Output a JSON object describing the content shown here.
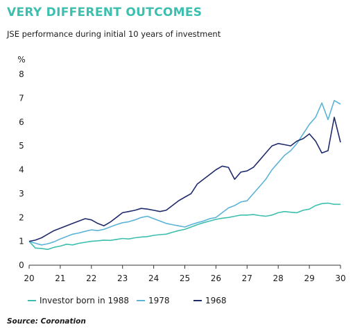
{
  "title": "VERY DIFFERENT OUTCOMES",
  "subtitle": "JSE performance during initial 10 years of investment",
  "source": "Source: Coronation",
  "colors": {
    "title": "#3cbfae",
    "born1988": "#3cbfae",
    "born1978": "#5bb3d8",
    "born1968": "#1f2a6b",
    "axis": "#333333"
  },
  "chart_data": {
    "type": "line",
    "ylabel": "%",
    "xlim": [
      20,
      30
    ],
    "ylim": [
      0,
      8
    ],
    "xticks": [
      "20",
      "21",
      "22",
      "23",
      "24",
      "25",
      "26",
      "27",
      "28",
      "29",
      "30"
    ],
    "yticks": [
      "0",
      "1",
      "2",
      "3",
      "4",
      "5",
      "6",
      "7",
      "8"
    ],
    "grid": false,
    "legend": "bottom",
    "series": [
      {
        "name": "Investor born in 1988",
        "color": "#3cbfae",
        "x": [
          20.0,
          20.2,
          20.4,
          20.6,
          20.8,
          21.0,
          21.2,
          21.4,
          21.6,
          21.8,
          22.0,
          22.2,
          22.4,
          22.6,
          22.8,
          23.0,
          23.2,
          23.4,
          23.6,
          23.8,
          24.0,
          24.2,
          24.4,
          24.6,
          24.8,
          25.0,
          25.2,
          25.4,
          25.6,
          25.8,
          26.0,
          26.2,
          26.4,
          26.6,
          26.8,
          27.0,
          27.2,
          27.4,
          27.6,
          27.8,
          28.0,
          28.2,
          28.4,
          28.6,
          28.8,
          29.0,
          29.2,
          29.4,
          29.6,
          29.8,
          30.0
        ],
        "y": [
          1.0,
          0.72,
          0.7,
          0.66,
          0.75,
          0.8,
          0.88,
          0.85,
          0.92,
          0.96,
          1.0,
          1.02,
          1.05,
          1.04,
          1.08,
          1.12,
          1.1,
          1.15,
          1.18,
          1.2,
          1.25,
          1.28,
          1.3,
          1.38,
          1.45,
          1.5,
          1.6,
          1.7,
          1.78,
          1.85,
          1.92,
          1.97,
          2.0,
          2.05,
          2.1,
          2.1,
          2.12,
          2.08,
          2.05,
          2.1,
          2.2,
          2.25,
          2.22,
          2.2,
          2.3,
          2.35,
          2.5,
          2.58,
          2.6,
          2.55,
          2.55
        ]
      },
      {
        "name": "1978",
        "color": "#5bb3d8",
        "x": [
          20.0,
          20.2,
          20.4,
          20.6,
          20.8,
          21.0,
          21.2,
          21.4,
          21.6,
          21.8,
          22.0,
          22.2,
          22.4,
          22.6,
          22.8,
          23.0,
          23.2,
          23.4,
          23.6,
          23.8,
          24.0,
          24.2,
          24.4,
          24.6,
          24.8,
          25.0,
          25.2,
          25.4,
          25.6,
          25.8,
          26.0,
          26.2,
          26.4,
          26.6,
          26.8,
          27.0,
          27.2,
          27.4,
          27.6,
          27.8,
          28.0,
          28.2,
          28.4,
          28.6,
          28.8,
          29.0,
          29.2,
          29.4,
          29.6,
          29.8,
          30.0
        ],
        "y": [
          1.0,
          0.92,
          0.85,
          0.9,
          0.98,
          1.1,
          1.2,
          1.3,
          1.35,
          1.42,
          1.48,
          1.45,
          1.5,
          1.6,
          1.7,
          1.78,
          1.82,
          1.9,
          2.0,
          2.05,
          1.95,
          1.85,
          1.75,
          1.7,
          1.65,
          1.6,
          1.7,
          1.78,
          1.85,
          1.95,
          2.0,
          2.2,
          2.4,
          2.5,
          2.65,
          2.7,
          3.0,
          3.3,
          3.6,
          4.0,
          4.3,
          4.6,
          4.8,
          5.1,
          5.5,
          5.9,
          6.2,
          6.8,
          6.1,
          6.9,
          6.75
        ]
      },
      {
        "name": "1968",
        "color": "#1f2a6b",
        "x": [
          20.0,
          20.2,
          20.4,
          20.6,
          20.8,
          21.0,
          21.2,
          21.4,
          21.6,
          21.8,
          22.0,
          22.2,
          22.4,
          22.6,
          22.8,
          23.0,
          23.2,
          23.4,
          23.6,
          23.8,
          24.0,
          24.2,
          24.4,
          24.6,
          24.8,
          25.0,
          25.2,
          25.4,
          25.6,
          25.8,
          26.0,
          26.2,
          26.4,
          26.6,
          26.8,
          27.0,
          27.2,
          27.4,
          27.6,
          27.8,
          28.0,
          28.2,
          28.4,
          28.6,
          28.8,
          29.0,
          29.2,
          29.4,
          29.6,
          29.8,
          30.0
        ],
        "y": [
          1.0,
          1.05,
          1.15,
          1.3,
          1.45,
          1.55,
          1.65,
          1.75,
          1.85,
          1.95,
          1.9,
          1.75,
          1.65,
          1.8,
          2.0,
          2.2,
          2.25,
          2.3,
          2.38,
          2.35,
          2.3,
          2.25,
          2.3,
          2.5,
          2.7,
          2.85,
          3.0,
          3.4,
          3.6,
          3.8,
          4.0,
          4.15,
          4.1,
          3.6,
          3.9,
          3.95,
          4.1,
          4.4,
          4.7,
          5.0,
          5.1,
          5.05,
          5.0,
          5.2,
          5.3,
          5.5,
          5.2,
          4.7,
          4.8,
          6.2,
          5.15
        ]
      }
    ]
  }
}
